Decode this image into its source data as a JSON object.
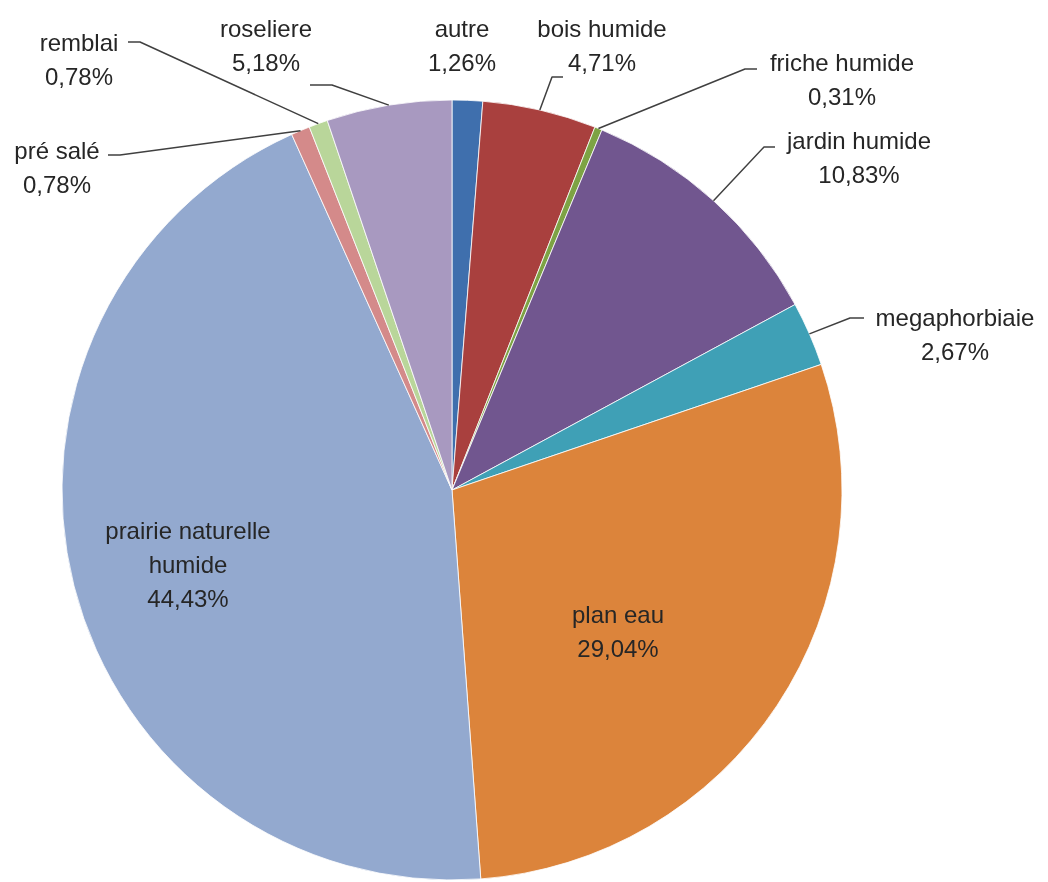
{
  "chart_data": {
    "type": "pie",
    "categories": [
      "autre",
      "bois humide",
      "friche humide",
      "jardin humide",
      "megaphorbiaie",
      "plan eau",
      "prairie naturelle humide",
      "pré salé",
      "remblai",
      "roseliere"
    ],
    "values": [
      1.26,
      4.71,
      0.31,
      10.83,
      2.67,
      29.04,
      44.43,
      0.78,
      0.78,
      5.18
    ],
    "value_labels": [
      "1,26%",
      "4,71%",
      "0,31%",
      "10,83%",
      "2,67%",
      "29,04%",
      "44,43%",
      "0,78%",
      "0,78%",
      "5,18%"
    ],
    "colors": [
      "#3f6fad",
      "#a9403e",
      "#7da344",
      "#71568f",
      "#3fa0b6",
      "#dc843b",
      "#93a9cf",
      "#d48a8a",
      "#b9d69a",
      "#a899c0"
    ]
  }
}
